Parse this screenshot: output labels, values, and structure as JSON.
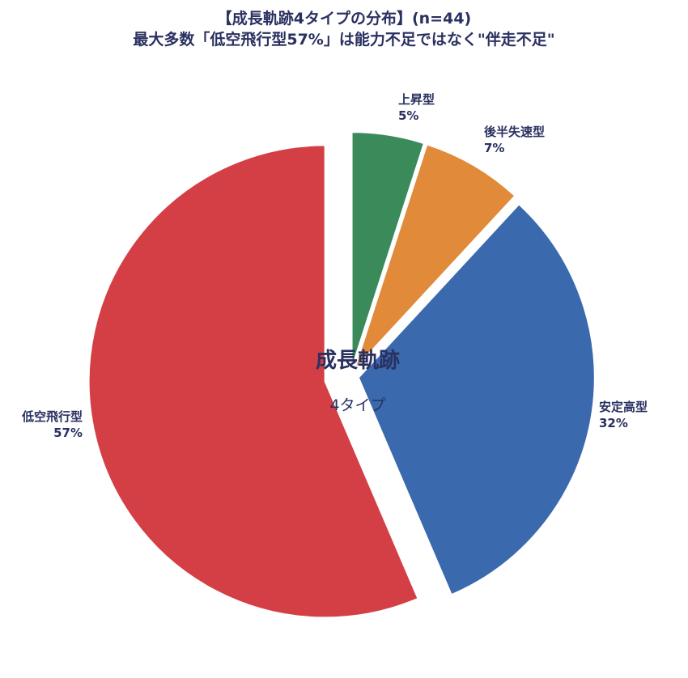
{
  "chart_data": {
    "type": "pie",
    "title": "【成長軌跡4タイプの分布】(n=44)",
    "subtitle": "最大多数「低空飛行型57%」は能力不足ではなく\"伴走不足\"",
    "center_label": "成長軌跡",
    "center_sublabel": "4タイプ",
    "slices": [
      {
        "label": "上昇型",
        "value": 5,
        "value_label": "5%",
        "color": "#3a8a5a"
      },
      {
        "label": "後半失速型",
        "value": 7,
        "value_label": "7%",
        "color": "#e08a3a"
      },
      {
        "label": "安定高型",
        "value": 32,
        "value_label": "32%",
        "color": "#3a6aad"
      },
      {
        "label": "低空飛行型",
        "value": 57,
        "value_label": "57%",
        "color": "#d43f45"
      }
    ]
  }
}
